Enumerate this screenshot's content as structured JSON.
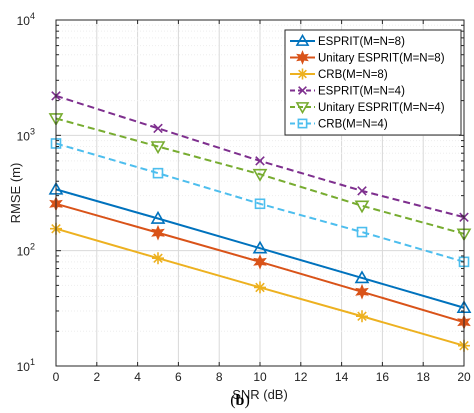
{
  "chart_data": {
    "type": "line",
    "xlabel": "SNR (dB)",
    "ylabel": "RMSE (m)",
    "caption_open": "(",
    "caption_letter": "b",
    "caption_close": ")",
    "xlim": [
      0,
      20
    ],
    "ylim": [
      10,
      10000
    ],
    "y_scale": "log",
    "x_ticks": [
      "0",
      "2",
      "4",
      "6",
      "8",
      "10",
      "12",
      "14",
      "16",
      "18",
      "20"
    ],
    "y_ticks": [
      {
        "base": "10",
        "exp": "1"
      },
      {
        "base": "10",
        "exp": "2"
      },
      {
        "base": "10",
        "exp": "3"
      },
      {
        "base": "10",
        "exp": "4"
      }
    ],
    "grid": true,
    "legend_position": "top-right",
    "x": [
      0,
      5,
      10,
      15,
      20
    ],
    "series": [
      {
        "name": "ESPRIT(M=N=8)",
        "values": [
          340,
          190,
          105,
          58,
          32
        ],
        "color": "#0072BD",
        "marker": "triangle-up",
        "dashed": false
      },
      {
        "name": "Unitary ESPRIT(M=N=8)",
        "values": [
          255,
          143,
          80,
          44,
          24
        ],
        "color": "#D95319",
        "marker": "hexagram",
        "dashed": false
      },
      {
        "name": "CRB(M=N=8)",
        "values": [
          155,
          86,
          48,
          27,
          15
        ],
        "color": "#EDB120",
        "marker": "asterisk",
        "dashed": false
      },
      {
        "name": "ESPRIT(M=N=4)",
        "values": [
          2200,
          1150,
          600,
          330,
          195
        ],
        "color": "#7E2F8E",
        "marker": "x",
        "dashed": true
      },
      {
        "name": "Unitary ESPRIT(M=N=4)",
        "values": [
          1400,
          800,
          460,
          245,
          140
        ],
        "color": "#77AC30",
        "marker": "triangle-down",
        "dashed": true
      },
      {
        "name": "CRB(M=N=4)",
        "values": [
          850,
          470,
          255,
          145,
          80
        ],
        "color": "#4DBEEE",
        "marker": "square",
        "dashed": true
      }
    ]
  }
}
